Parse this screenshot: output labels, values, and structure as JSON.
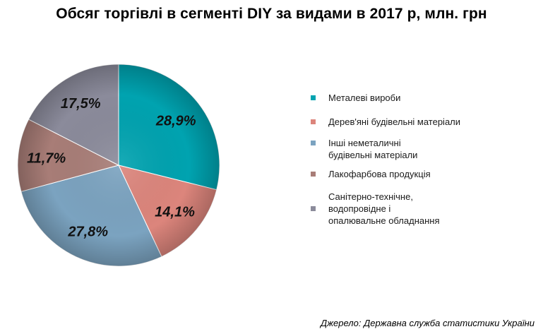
{
  "chart_data": {
    "type": "pie",
    "title": "Обсяг торгівлі в сегменті DIY за видами в 2017 р, млн. грн",
    "slices": [
      {
        "label": "Металеві вироби",
        "value": 28.9,
        "display": "28,9%",
        "color": "#00a3b0"
      },
      {
        "label": "Дерев'яні будівельні матеріали",
        "value": 14.1,
        "display": "14,1%",
        "color": "#dc857c"
      },
      {
        "label": "Інші неметаличні\nбудівельні матеріали",
        "value": 27.8,
        "display": "27,8%",
        "color": "#7ba3c0"
      },
      {
        "label": "Лакофарбова продукція",
        "value": 11.7,
        "display": "11,7%",
        "color": "#a87d77"
      },
      {
        "label": "Санітерно-технічне,\nводопровідне і\nопалювальне обладнання",
        "value": 17.5,
        "display": "17,5%",
        "color": "#8b8b9b"
      }
    ],
    "legend_position": "right"
  },
  "source": "Джерело: Державна служба статистики України"
}
